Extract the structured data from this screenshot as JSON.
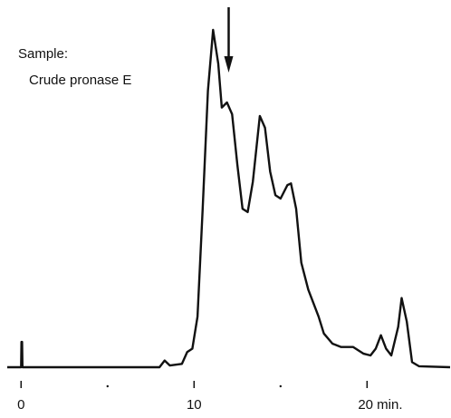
{
  "chart_data": {
    "type": "line",
    "annotations": [
      {
        "text": "Sample:"
      },
      {
        "text": "Crude pronase E"
      },
      {
        "arrow_x": 12
      }
    ],
    "xlim": [
      -0.8,
      24.8
    ],
    "xticks": [
      0,
      10,
      {
        "value": 20,
        "label": "20 min."
      }
    ],
    "xminor_ticks": [
      5,
      15
    ],
    "ylim": [
      0,
      100
    ],
    "series": [
      {
        "color": "#111111",
        "x": [
          -0.8,
          0,
          0.02,
          0.06,
          0.08,
          8,
          8.3,
          8.6,
          9.3,
          9.6,
          9.9,
          10.2,
          10.5,
          10.8,
          11.1,
          11.4,
          11.6,
          11.9,
          12.2,
          12.5,
          12.8,
          13.1,
          13.4,
          13.8,
          14.1,
          14.4,
          14.7,
          15.0,
          15.4,
          15.6,
          15.9,
          16.2,
          16.6,
          17.2,
          17.5,
          18.0,
          18.5,
          19.2,
          19.8,
          20.2,
          20.5,
          20.8,
          21.1,
          21.4,
          21.8,
          22.0,
          22.3,
          22.6,
          23.0,
          24.8
        ],
        "values": [
          0,
          0,
          7.5,
          7.5,
          0,
          0,
          2,
          0.5,
          1,
          4.5,
          5.5,
          15,
          47,
          82,
          100,
          90,
          77,
          78.5,
          75,
          60,
          47,
          46,
          55,
          74.5,
          71,
          58,
          51,
          50,
          54,
          54.5,
          47,
          31,
          23,
          15,
          10,
          7,
          6,
          6,
          4,
          3.5,
          5.5,
          9.5,
          5.5,
          3.5,
          12,
          20.5,
          13.5,
          1.5,
          0.3,
          0
        ]
      }
    ]
  }
}
